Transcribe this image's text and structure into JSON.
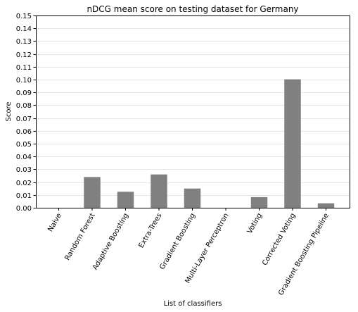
{
  "chart_data": {
    "type": "bar",
    "title": "nDCG mean score on testing dataset for Germany",
    "xlabel": "List of classifiers",
    "ylabel": "Score",
    "categories": [
      "Naive",
      "Random Forest",
      "Adaptive Boosting",
      "Extra-Trees",
      "Gradient Boosting",
      "Multi-Layer Perceptron",
      "Voting",
      "Corrected Voting",
      "Gradient Boosting Pipeline"
    ],
    "values": [
      0.0,
      0.024,
      0.0125,
      0.026,
      0.015,
      0.0,
      0.0083,
      0.1002,
      0.0035
    ],
    "ylim": [
      0,
      0.15
    ],
    "yticks": [
      "0.00",
      "0.01",
      "0.02",
      "0.03",
      "0.04",
      "0.05",
      "0.06",
      "0.07",
      "0.08",
      "0.09",
      "0.10",
      "0.11",
      "0.12",
      "0.13",
      "0.14",
      "0.15"
    ],
    "grid": "horizontal",
    "bar_color": "#808080",
    "grid_color": "#e6e6e6"
  }
}
